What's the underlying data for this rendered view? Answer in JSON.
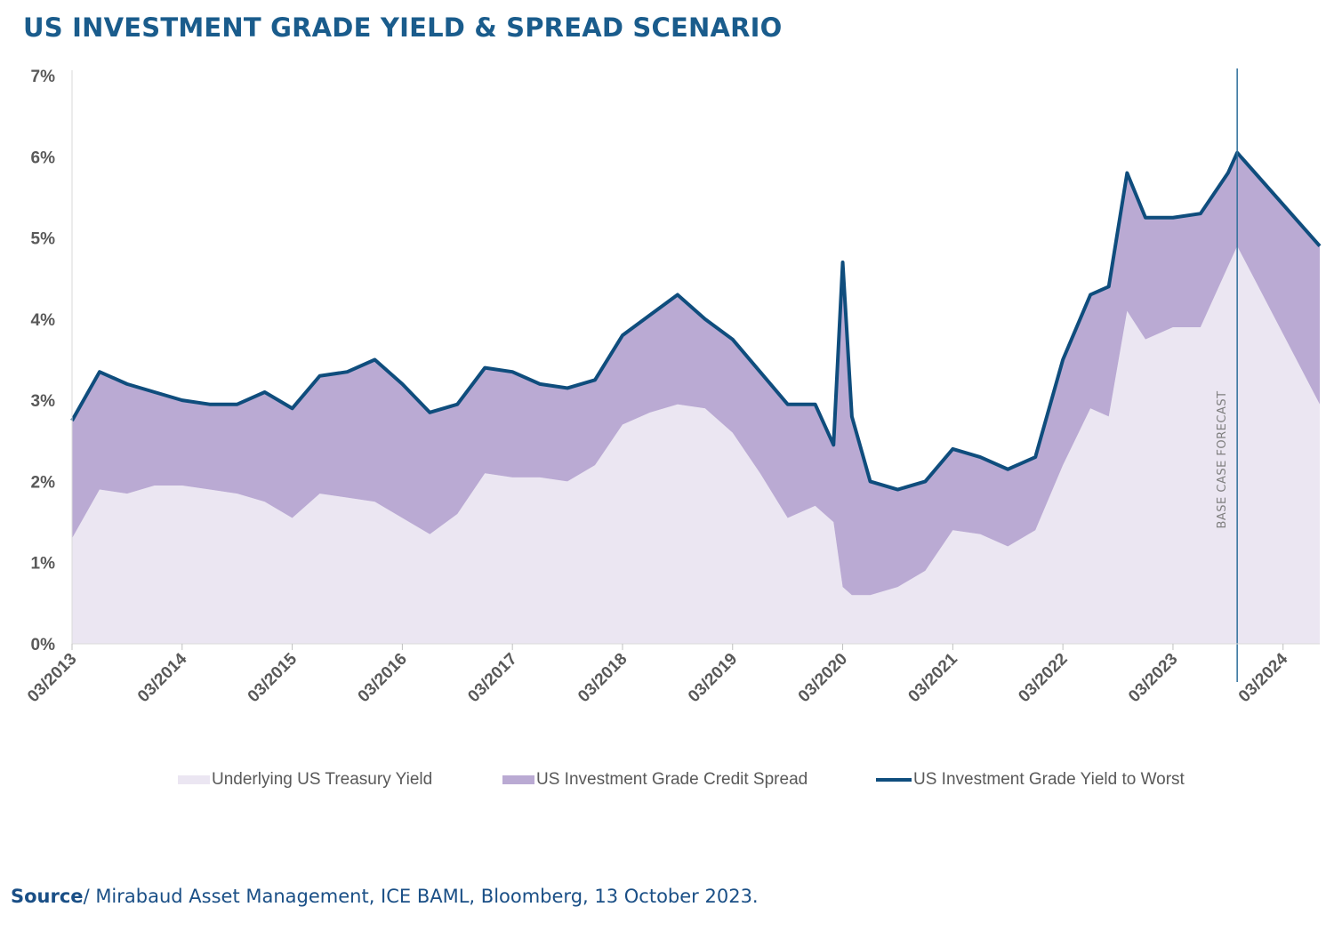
{
  "title": "US INVESTMENT GRADE YIELD & SPREAD SCENARIO",
  "source": {
    "label": "Source",
    "text": "/ Mirabaud Asset Management, ICE BAML, Bloomberg, 13 October 2023."
  },
  "colors": {
    "title": "#1a5c8c",
    "treasury_fill": "#ebe6f2",
    "spread_fill": "#baaad3",
    "ytw_line": "#0f4d7d",
    "axis_text": "#595959",
    "forecast_line": "#2e6f9a",
    "forecast_text": "#7f7f7f",
    "source_label": "#1a4f86"
  },
  "chart_data": {
    "type": "area",
    "title": "US INVESTMENT GRADE YIELD & SPREAD SCENARIO",
    "xlabel": "",
    "ylabel": "",
    "x_ticks": [
      "03/2013",
      "03/2014",
      "03/2015",
      "03/2016",
      "03/2017",
      "03/2018",
      "03/2019",
      "03/2020",
      "03/2021",
      "03/2022",
      "03/2023",
      "03/2024"
    ],
    "y_ticks": [
      "0%",
      "1%",
      "2%",
      "3%",
      "4%",
      "5%",
      "6%",
      "7%"
    ],
    "ylim": [
      0,
      7
    ],
    "xlim": [
      "2013-03",
      "2024-07"
    ],
    "grid": false,
    "legend_position": "bottom",
    "annotation": "BASE CASE FORECAST",
    "forecast_start": "2023-10",
    "x": [
      "2013-03",
      "2013-06",
      "2013-09",
      "2013-12",
      "2014-03",
      "2014-06",
      "2014-09",
      "2014-12",
      "2015-03",
      "2015-06",
      "2015-09",
      "2015-12",
      "2016-03",
      "2016-06",
      "2016-09",
      "2016-12",
      "2017-03",
      "2017-06",
      "2017-09",
      "2017-12",
      "2018-03",
      "2018-06",
      "2018-09",
      "2018-12",
      "2019-03",
      "2019-06",
      "2019-09",
      "2019-12",
      "2020-02",
      "2020-03",
      "2020-04",
      "2020-06",
      "2020-09",
      "2020-12",
      "2021-03",
      "2021-06",
      "2021-09",
      "2021-12",
      "2022-03",
      "2022-06",
      "2022-08",
      "2022-10",
      "2022-12",
      "2023-03",
      "2023-06",
      "2023-09",
      "2023-10",
      "2024-07"
    ],
    "series": [
      {
        "name": "Underlying US Treasury Yield",
        "type": "area",
        "values": [
          1.3,
          1.9,
          1.85,
          1.95,
          1.95,
          1.9,
          1.85,
          1.75,
          1.55,
          1.85,
          1.8,
          1.75,
          1.55,
          1.35,
          1.6,
          2.1,
          2.05,
          2.05,
          2.0,
          2.2,
          2.7,
          2.85,
          2.95,
          2.9,
          2.6,
          2.1,
          1.55,
          1.7,
          1.5,
          0.7,
          0.6,
          0.6,
          0.7,
          0.9,
          1.4,
          1.35,
          1.2,
          1.4,
          2.2,
          2.9,
          2.8,
          4.1,
          3.75,
          3.9,
          3.9,
          4.65,
          4.9,
          2.95
        ]
      },
      {
        "name": "US Investment Grade Credit Spread",
        "type": "area",
        "values": [
          1.45,
          1.45,
          1.35,
          1.15,
          1.05,
          1.05,
          1.1,
          1.35,
          1.35,
          1.45,
          1.55,
          1.75,
          1.65,
          1.5,
          1.35,
          1.3,
          1.3,
          1.15,
          1.15,
          1.05,
          1.1,
          1.2,
          1.35,
          1.1,
          1.15,
          1.25,
          1.4,
          1.25,
          0.95,
          4.0,
          2.2,
          1.4,
          1.2,
          1.1,
          1.0,
          0.95,
          0.95,
          0.9,
          1.3,
          1.4,
          1.6,
          1.7,
          1.5,
          1.35,
          1.4,
          1.15,
          1.15,
          1.95
        ]
      },
      {
        "name": "US Investment Grade Yield to Worst",
        "type": "line",
        "values": [
          2.75,
          3.35,
          3.2,
          3.1,
          3.0,
          2.95,
          2.95,
          3.1,
          2.9,
          3.3,
          3.35,
          3.5,
          3.2,
          2.85,
          2.95,
          3.4,
          3.35,
          3.2,
          3.15,
          3.25,
          3.8,
          4.05,
          4.3,
          4.0,
          3.75,
          3.35,
          2.95,
          2.95,
          2.45,
          4.7,
          2.8,
          2.0,
          1.9,
          2.0,
          2.4,
          2.3,
          2.15,
          2.3,
          3.5,
          4.3,
          4.4,
          5.8,
          5.25,
          5.25,
          5.3,
          5.8,
          6.05,
          4.9
        ]
      }
    ]
  }
}
